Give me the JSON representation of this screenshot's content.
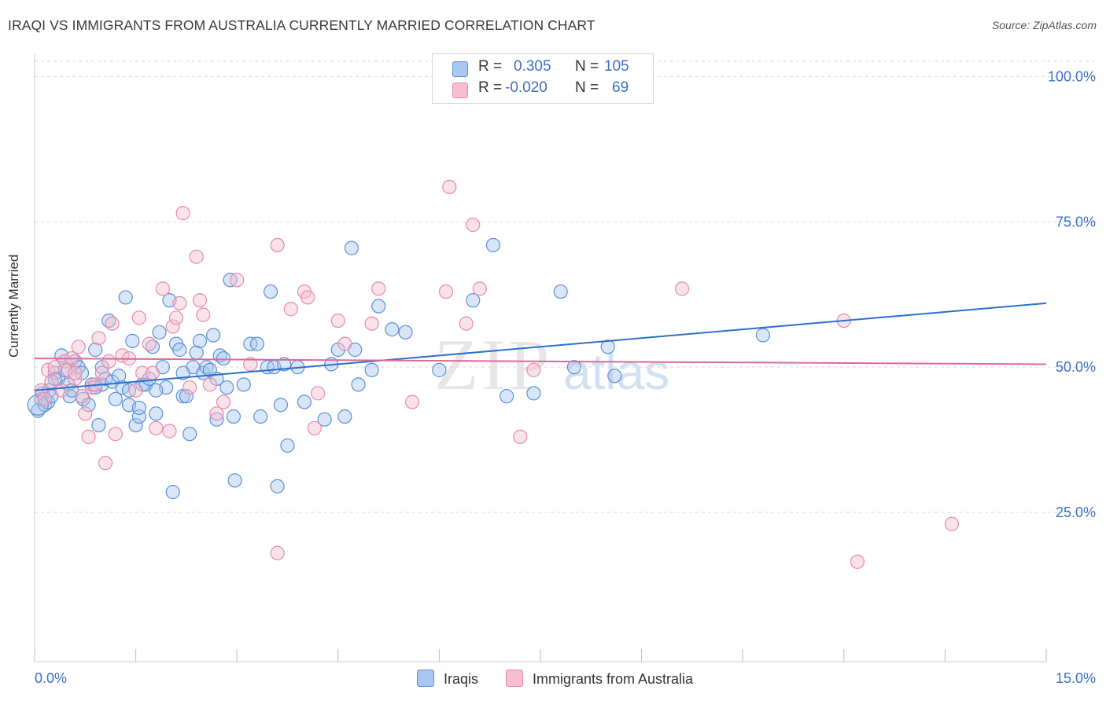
{
  "header": {
    "title": "IRAQI VS IMMIGRANTS FROM AUSTRALIA CURRENTLY MARRIED CORRELATION CHART",
    "source": "Source: ZipAtlas.com"
  },
  "legend_top": {
    "rows": [
      {
        "r_label": "R =",
        "r_value": "0.305",
        "n_label": "N =",
        "n_value": "105"
      },
      {
        "r_label": "R =",
        "r_value": "-0.020",
        "n_label": "N =",
        "n_value": "69"
      }
    ]
  },
  "legend_bottom": {
    "items": [
      "Iraqis",
      "Immigrants from Australia"
    ]
  },
  "watermark": {
    "zip": "ZIP",
    "atlas": "atlas"
  },
  "colors": {
    "blue_fill": "#a9c7f0",
    "blue_stroke": "#5b8fd8",
    "blue_line": "#2b6fd0",
    "pink_fill": "#f5bfd0",
    "pink_stroke": "#e88aa8",
    "pink_line": "#e0679a",
    "tick_text": "#3d6fc9",
    "grid": "#d9d9d9"
  },
  "chart_data": {
    "type": "scatter",
    "title": "IRAQI VS IMMIGRANTS FROM AUSTRALIA CURRENTLY MARRIED CORRELATION CHART",
    "xlabel": "",
    "ylabel": "Currently Married",
    "xlim": [
      0,
      15
    ],
    "ylim": [
      0,
      105
    ],
    "x_tick_labels": [
      "0.0%",
      "15.0%"
    ],
    "y_ticks": [
      25,
      50,
      75,
      100
    ],
    "y_tick_labels": [
      "25.0%",
      "50.0%",
      "75.0%",
      "100.0%"
    ],
    "grid": true,
    "legend_position": "top-center",
    "series": [
      {
        "name": "Iraqis",
        "r": 0.305,
        "n": 105,
        "trend": {
          "x": [
            0,
            15
          ],
          "y": [
            46.0,
            61.0
          ]
        },
        "points": [
          [
            0.05,
            42.5
          ],
          [
            0.1,
            44.5
          ],
          [
            0.12,
            45.5
          ],
          [
            0.15,
            43.5
          ],
          [
            0.2,
            44.0
          ],
          [
            0.22,
            46.0
          ],
          [
            0.25,
            45.0
          ],
          [
            0.3,
            49.0
          ],
          [
            0.35,
            48.0
          ],
          [
            0.4,
            52.0
          ],
          [
            0.45,
            49.5
          ],
          [
            0.5,
            47.0
          ],
          [
            0.52,
            45.0
          ],
          [
            0.55,
            46.0
          ],
          [
            0.6,
            51.0
          ],
          [
            0.65,
            50.0
          ],
          [
            0.7,
            49.0
          ],
          [
            0.72,
            44.5
          ],
          [
            0.8,
            43.5
          ],
          [
            0.85,
            47.0
          ],
          [
            0.9,
            46.5
          ],
          [
            0.95,
            40.0
          ],
          [
            1.0,
            47.0
          ],
          [
            1.0,
            50.0
          ],
          [
            1.05,
            48.0
          ],
          [
            1.1,
            58.0
          ],
          [
            1.15,
            47.5
          ],
          [
            1.2,
            44.5
          ],
          [
            1.25,
            48.5
          ],
          [
            1.3,
            46.5
          ],
          [
            1.35,
            62.0
          ],
          [
            1.4,
            43.5
          ],
          [
            1.45,
            54.5
          ],
          [
            1.5,
            40.0
          ],
          [
            1.55,
            41.5
          ],
          [
            1.55,
            43.0
          ],
          [
            1.6,
            47.0
          ],
          [
            1.65,
            47.0
          ],
          [
            1.7,
            48.0
          ],
          [
            1.75,
            53.5
          ],
          [
            1.8,
            42.0
          ],
          [
            1.85,
            56.0
          ],
          [
            1.9,
            50.0
          ],
          [
            1.95,
            46.5
          ],
          [
            2.0,
            61.5
          ],
          [
            2.05,
            28.5
          ],
          [
            2.1,
            54.0
          ],
          [
            2.15,
            53.0
          ],
          [
            2.2,
            45.0
          ],
          [
            2.25,
            45.0
          ],
          [
            2.3,
            38.5
          ],
          [
            2.35,
            50.0
          ],
          [
            2.4,
            52.5
          ],
          [
            2.45,
            54.5
          ],
          [
            2.5,
            49.0
          ],
          [
            2.55,
            50.0
          ],
          [
            2.6,
            49.5
          ],
          [
            2.65,
            55.5
          ],
          [
            2.7,
            41.0
          ],
          [
            2.75,
            52.0
          ],
          [
            2.8,
            51.5
          ],
          [
            2.85,
            46.5
          ],
          [
            2.9,
            65.0
          ],
          [
            2.95,
            41.5
          ],
          [
            2.97,
            30.5
          ],
          [
            3.1,
            47.0
          ],
          [
            3.2,
            54.0
          ],
          [
            3.3,
            54.0
          ],
          [
            3.35,
            41.5
          ],
          [
            3.45,
            50.0
          ],
          [
            3.5,
            63.0
          ],
          [
            3.55,
            50.0
          ],
          [
            3.6,
            29.5
          ],
          [
            3.65,
            43.5
          ],
          [
            3.7,
            50.5
          ],
          [
            3.75,
            36.5
          ],
          [
            4.0,
            44.0
          ],
          [
            4.3,
            41.0
          ],
          [
            4.4,
            50.5
          ],
          [
            4.5,
            53.0
          ],
          [
            4.6,
            41.5
          ],
          [
            4.7,
            70.5
          ],
          [
            4.75,
            53.0
          ],
          [
            4.8,
            47.0
          ],
          [
            5.0,
            49.5
          ],
          [
            5.1,
            60.5
          ],
          [
            5.3,
            56.5
          ],
          [
            5.5,
            56.0
          ],
          [
            6.0,
            49.5
          ],
          [
            6.5,
            61.5
          ],
          [
            6.8,
            71.0
          ],
          [
            7.0,
            45.0
          ],
          [
            7.4,
            45.5
          ],
          [
            7.8,
            63.0
          ],
          [
            8.0,
            50.0
          ],
          [
            8.5,
            53.5
          ],
          [
            8.6,
            48.5
          ],
          [
            10.8,
            55.5
          ],
          [
            1.4,
            46.0
          ],
          [
            0.9,
            53.0
          ],
          [
            1.8,
            46.0
          ],
          [
            2.2,
            49.0
          ],
          [
            2.7,
            48.0
          ],
          [
            3.9,
            50.0
          ],
          [
            0.3,
            48.0
          ]
        ]
      },
      {
        "name": "Immigrants from Australia",
        "r": -0.02,
        "n": 69,
        "trend": {
          "x": [
            0,
            15
          ],
          "y": [
            51.5,
            50.5
          ]
        },
        "points": [
          [
            0.1,
            46.0
          ],
          [
            0.15,
            44.5
          ],
          [
            0.2,
            49.5
          ],
          [
            0.25,
            47.5
          ],
          [
            0.3,
            50.0
          ],
          [
            0.4,
            46.0
          ],
          [
            0.45,
            51.0
          ],
          [
            0.5,
            49.5
          ],
          [
            0.55,
            51.5
          ],
          [
            0.6,
            48.0
          ],
          [
            0.65,
            53.5
          ],
          [
            0.7,
            45.0
          ],
          [
            0.75,
            42.0
          ],
          [
            0.8,
            38.0
          ],
          [
            0.85,
            46.5
          ],
          [
            0.9,
            47.0
          ],
          [
            0.95,
            55.0
          ],
          [
            1.0,
            49.0
          ],
          [
            1.05,
            33.5
          ],
          [
            1.1,
            51.0
          ],
          [
            1.15,
            57.5
          ],
          [
            1.2,
            38.5
          ],
          [
            1.3,
            52.0
          ],
          [
            1.4,
            51.5
          ],
          [
            1.5,
            46.0
          ],
          [
            1.55,
            58.5
          ],
          [
            1.6,
            49.0
          ],
          [
            1.7,
            54.0
          ],
          [
            1.75,
            49.0
          ],
          [
            1.8,
            39.5
          ],
          [
            1.9,
            63.5
          ],
          [
            2.0,
            39.0
          ],
          [
            2.05,
            57.0
          ],
          [
            2.1,
            58.5
          ],
          [
            2.15,
            61.0
          ],
          [
            2.2,
            76.5
          ],
          [
            2.3,
            46.5
          ],
          [
            2.4,
            69.0
          ],
          [
            2.45,
            61.5
          ],
          [
            2.5,
            59.0
          ],
          [
            2.6,
            47.0
          ],
          [
            2.7,
            42.0
          ],
          [
            2.8,
            44.0
          ],
          [
            3.0,
            65.0
          ],
          [
            3.2,
            50.5
          ],
          [
            3.6,
            71.0
          ],
          [
            3.8,
            60.0
          ],
          [
            4.0,
            63.0
          ],
          [
            4.05,
            62.0
          ],
          [
            4.15,
            39.5
          ],
          [
            4.2,
            45.5
          ],
          [
            4.5,
            58.0
          ],
          [
            4.6,
            54.0
          ],
          [
            5.0,
            57.5
          ],
          [
            5.1,
            63.5
          ],
          [
            5.6,
            44.0
          ],
          [
            6.1,
            63.0
          ],
          [
            6.15,
            81.0
          ],
          [
            6.4,
            57.5
          ],
          [
            6.5,
            74.5
          ],
          [
            6.6,
            63.5
          ],
          [
            7.2,
            38.0
          ],
          [
            7.4,
            49.5
          ],
          [
            9.6,
            63.5
          ],
          [
            12.0,
            58.0
          ],
          [
            12.2,
            16.5
          ],
          [
            13.6,
            23.0
          ],
          [
            3.6,
            18.0
          ],
          [
            0.6,
            49.0
          ]
        ]
      }
    ]
  }
}
